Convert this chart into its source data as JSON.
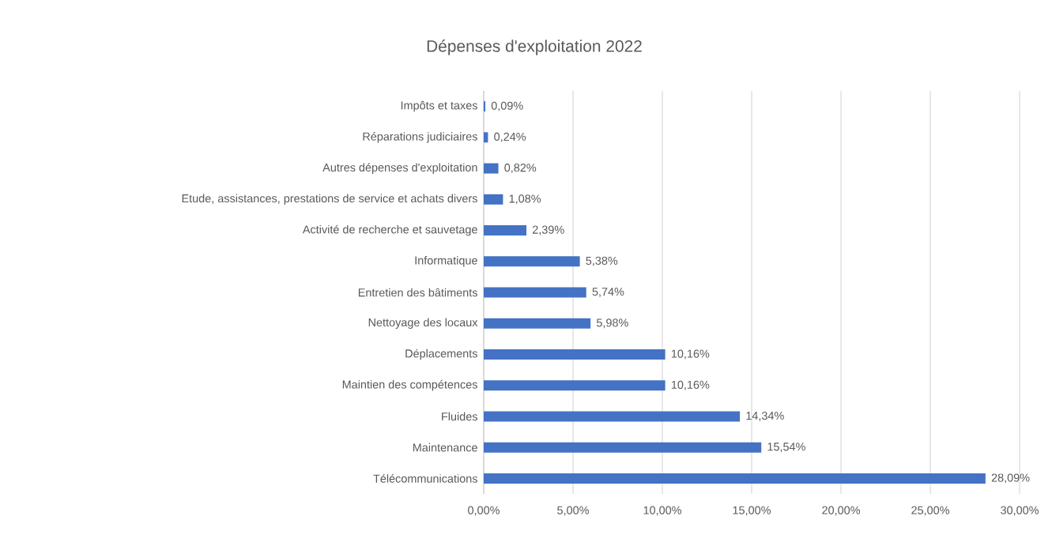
{
  "chart_data": {
    "type": "bar",
    "orientation": "horizontal",
    "title": "Dépenses d'exploitation 2022",
    "categories": [
      "Impôts et taxes",
      "Réparations judiciaires",
      "Autres dépenses d'exploitation",
      "Etude, assistances, prestations de service et achats divers",
      "Activité de recherche et sauvetage",
      "Informatique",
      "Entretien des bâtiments",
      "Nettoyage des locaux",
      "Déplacements",
      "Maintien des compétences",
      "Fluides",
      "Maintenance",
      "Télécommunications"
    ],
    "values": [
      0.09,
      0.24,
      0.82,
      1.08,
      2.39,
      5.38,
      5.74,
      5.98,
      10.16,
      10.16,
      14.34,
      15.54,
      28.09
    ],
    "value_labels": [
      "0,09%",
      "0,24%",
      "0,82%",
      "1,08%",
      "2,39%",
      "5,38%",
      "5,74%",
      "5,98%",
      "10,16%",
      "10,16%",
      "14,34%",
      "15,54%",
      "28,09%"
    ],
    "color": "#4472c4",
    "xlim": [
      0,
      30
    ],
    "xticks": [
      {
        "value": 0,
        "label": "0,00%"
      },
      {
        "value": 5,
        "label": "5,00%"
      },
      {
        "value": 10,
        "label": "10,00%"
      },
      {
        "value": 15,
        "label": "15,00%"
      },
      {
        "value": 20,
        "label": "20,00%"
      },
      {
        "value": 25,
        "label": "25,00%"
      },
      {
        "value": 30,
        "label": "30,00%"
      }
    ],
    "grid": "x"
  }
}
